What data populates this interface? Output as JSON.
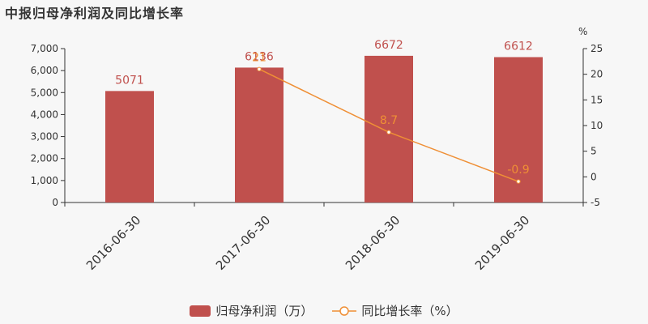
{
  "title": "中报归母净利润及同比增长率",
  "legend": {
    "bar_label": "归母净利润（万）",
    "line_label": "同比增长率（%）"
  },
  "colors": {
    "bar": "#c0504d",
    "line": "#ef8f35",
    "axis": "#333333"
  },
  "chart_data": {
    "type": "bar",
    "categories": [
      "2016-06-30",
      "2017-06-30",
      "2018-06-30",
      "2019-06-30"
    ],
    "series": [
      {
        "name": "归母净利润（万）",
        "type": "bar",
        "axis": "left",
        "values": [
          5071,
          6136,
          6672,
          6612
        ],
        "labels": [
          "5071",
          "6136",
          "6672",
          "6612"
        ]
      },
      {
        "name": "同比增长率（%）",
        "type": "line",
        "axis": "right",
        "values": [
          null,
          21,
          8.7,
          -0.9
        ],
        "labels": [
          "",
          "21",
          "8.7",
          "-0.9"
        ]
      }
    ],
    "left_axis": {
      "ylim": [
        0,
        7000
      ],
      "ticks": [
        0,
        1000,
        2000,
        3000,
        4000,
        5000,
        6000,
        7000
      ],
      "tick_labels": [
        "0",
        "1,000",
        "2,000",
        "3,000",
        "4,000",
        "5,000",
        "6,000",
        "7,000"
      ]
    },
    "right_axis": {
      "unit": "%",
      "ylim": [
        -5,
        25
      ],
      "ticks": [
        -5,
        0,
        5,
        10,
        15,
        20,
        25
      ],
      "tick_labels": [
        "-5",
        "0",
        "5",
        "10",
        "15",
        "20",
        "25"
      ]
    },
    "grid": false,
    "legend_position": "bottom-center"
  }
}
